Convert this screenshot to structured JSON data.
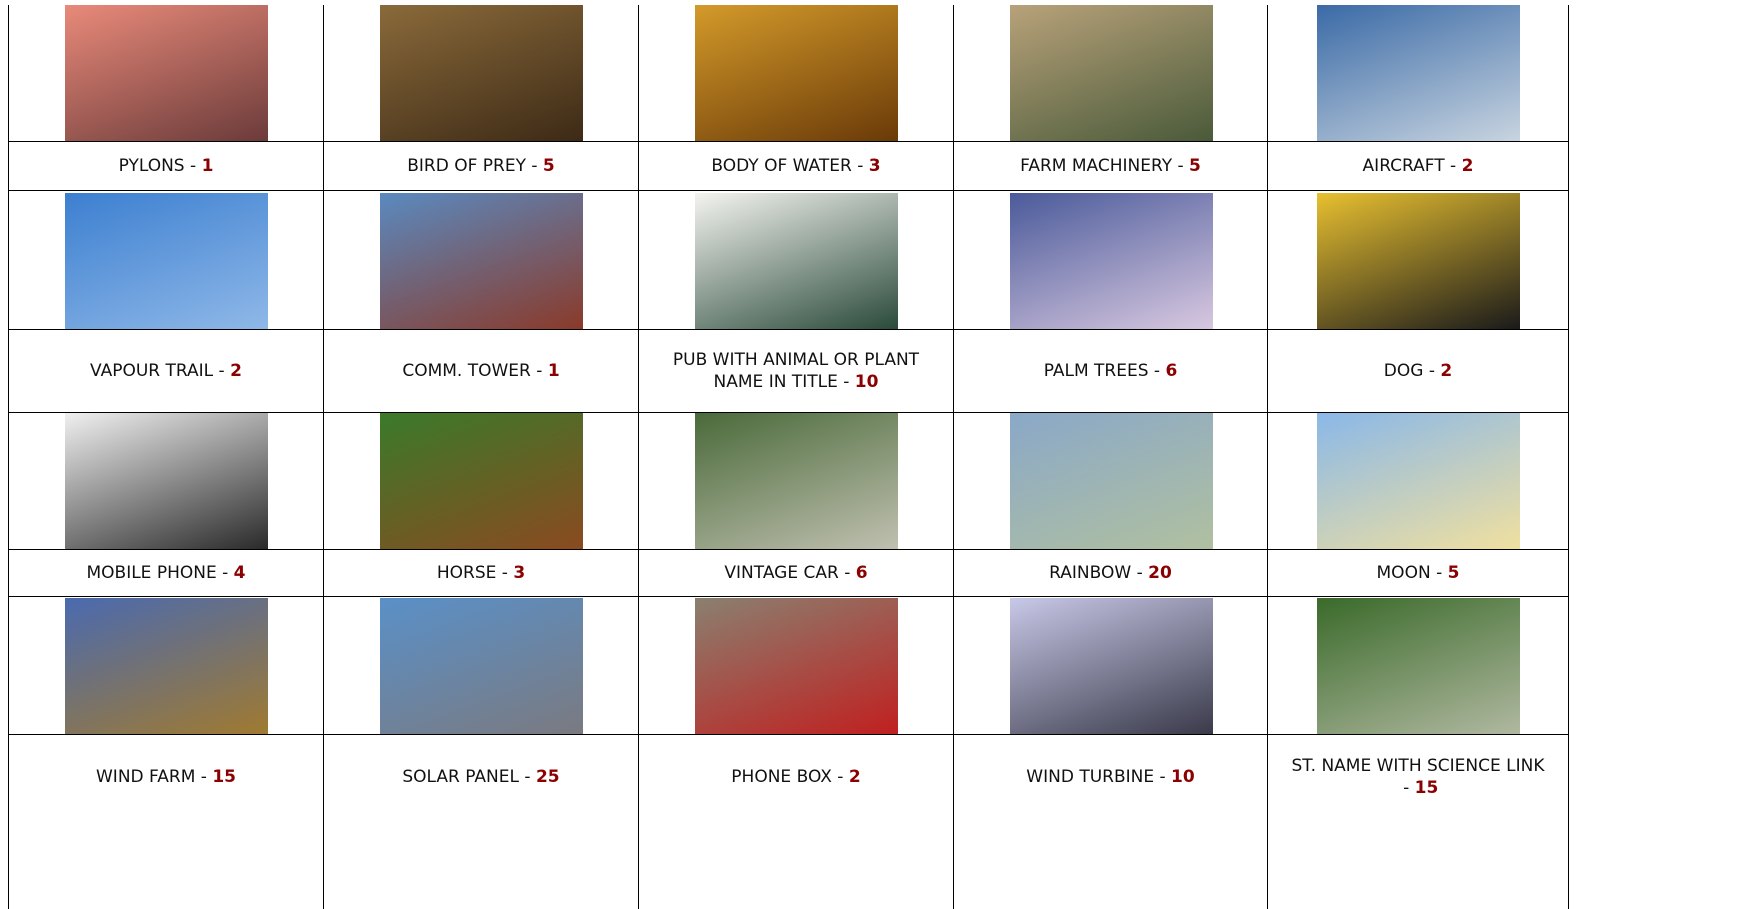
{
  "separator": " - ",
  "cells": [
    {
      "name": "PYLONS",
      "points": 1
    },
    {
      "name": "BIRD OF PREY",
      "points": 5
    },
    {
      "name": "BODY OF WATER",
      "points": 3
    },
    {
      "name": "FARM MACHINERY",
      "points": 5
    },
    {
      "name": "AIRCRAFT",
      "points": 2
    },
    {
      "name": "VAPOUR TRAIL",
      "points": 2
    },
    {
      "name": "COMM. TOWER",
      "points": 1
    },
    {
      "name": "PUB WITH ANIMAL OR PLANT NAME IN TITLE",
      "points": 10
    },
    {
      "name": "PALM TREES",
      "points": 6
    },
    {
      "name": "DOG",
      "points": 2
    },
    {
      "name": "MOBILE PHONE",
      "points": 4
    },
    {
      "name": "HORSE",
      "points": 3
    },
    {
      "name": "VINTAGE CAR",
      "points": 6
    },
    {
      "name": "RAINBOW",
      "points": 20
    },
    {
      "name": "MOON",
      "points": 5
    },
    {
      "name": "WIND FARM",
      "points": 15
    },
    {
      "name": "SOLAR PANEL",
      "points": 25
    },
    {
      "name": "PHONE BOX",
      "points": 2
    },
    {
      "name": "WIND TURBINE",
      "points": 10
    },
    {
      "name": "ST. NAME WITH SCIENCE LINK",
      "points": 15
    }
  ]
}
